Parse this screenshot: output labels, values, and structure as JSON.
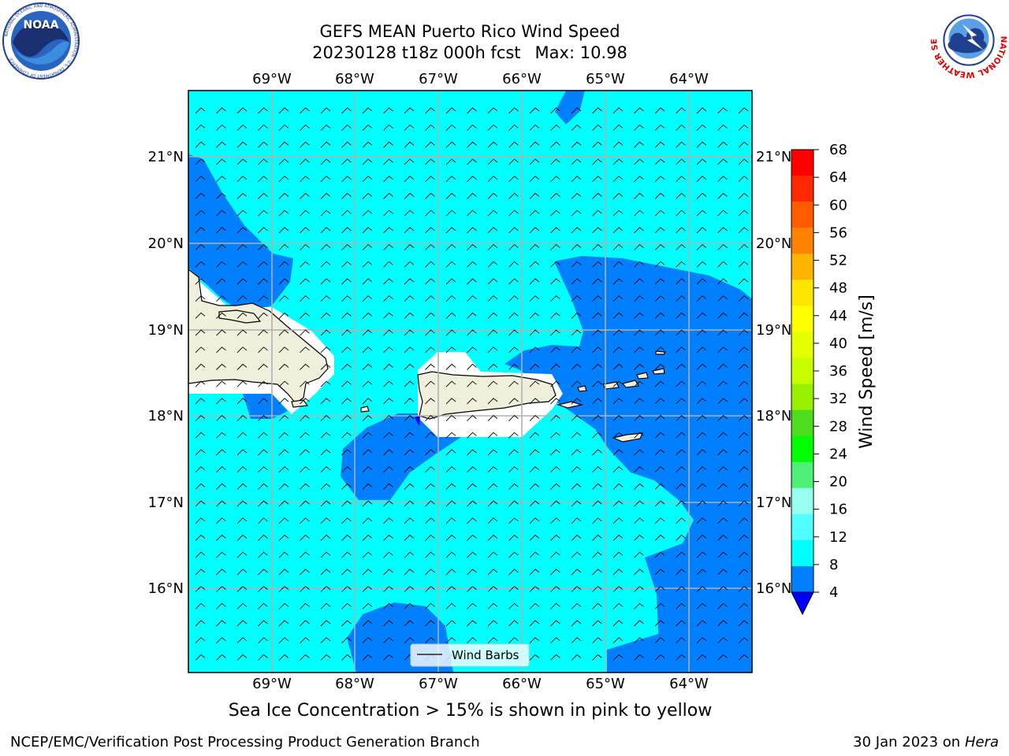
{
  "header": {
    "title": "GEFS MEAN Puerto Rico Wind Speed",
    "run": "20230128 t18z 000h fcst",
    "max_label": "Max: 10.98"
  },
  "logos": {
    "noaa_text": "NOAA",
    "noaa_ring": "NATIONAL OCEANIC AND ATMOSPHERIC ADMINISTRATION · U.S. DEPARTMENT OF COMMERCE",
    "nws_ring": "NATIONAL WEATHER SERVICE"
  },
  "map": {
    "lon_labels": [
      "69°W",
      "68°W",
      "67°W",
      "66°W",
      "65°W",
      "64°W"
    ],
    "lat_labels": [
      "21°N",
      "20°N",
      "19°N",
      "18°N",
      "17°N",
      "16°N"
    ],
    "legend_label": "Wind Barbs"
  },
  "colorbar": {
    "label": "Wind Speed [m/s]",
    "ticks": [
      "68",
      "64",
      "60",
      "56",
      "52",
      "48",
      "44",
      "40",
      "36",
      "32",
      "28",
      "24",
      "20",
      "16",
      "12",
      "8",
      "4"
    ],
    "colors": [
      "#ff0000",
      "#ff2800",
      "#ff5a00",
      "#ff8200",
      "#ffb400",
      "#ffe600",
      "#ffff00",
      "#e6ff00",
      "#c8ff00",
      "#96f000",
      "#50dc1e",
      "#00ff00",
      "#50f078",
      "#96fff0",
      "#50ffff",
      "#00ffff",
      "#0080ff"
    ],
    "under_color": "#0000ff"
  },
  "note": "Sea Ice Concentration > 15% is shown in pink to yellow",
  "footer": {
    "org": "NCEP/EMC/Verification Post Processing Product Generation Branch",
    "date": "30 Jan 2023 on",
    "host": "Hera"
  }
}
